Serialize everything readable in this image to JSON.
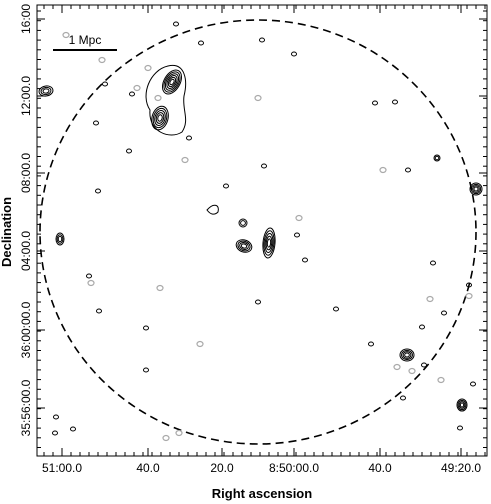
{
  "chart_data": {
    "type": "contour-map",
    "xlabel": "Right ascension",
    "ylabel": "Declination",
    "x_ticks": [
      "51:00.0",
      "40.0",
      "20.0",
      "8:50:00.0",
      "40.0",
      "49:20.0"
    ],
    "y_ticks": [
      "16:00",
      "12:00.0",
      "08:00.0",
      "04:00.0",
      "36:00:00.0",
      "35:56:00.0"
    ],
    "scale_bar_label": "1 Mpc",
    "aperture": {
      "shape": "circle",
      "line_style": "dashed"
    },
    "contour_colors": {
      "positive": "#000000",
      "negative": "#aaaaaa"
    },
    "sources": [
      {
        "name": "src-top-left-edge",
        "levels": 3
      },
      {
        "name": "src-nw-complex",
        "levels": 6
      },
      {
        "name": "src-nw-blob",
        "levels": 5
      },
      {
        "name": "src-center-left",
        "levels": 4
      },
      {
        "name": "src-center-right",
        "levels": 5
      },
      {
        "name": "src-center-small",
        "levels": 2
      },
      {
        "name": "src-right-edge",
        "levels": 4
      },
      {
        "name": "src-east-small",
        "levels": 2
      },
      {
        "name": "src-lower-right",
        "levels": 4
      },
      {
        "name": "src-bottom-right",
        "levels": 4
      },
      {
        "name": "src-left-mid",
        "levels": 3
      }
    ]
  }
}
